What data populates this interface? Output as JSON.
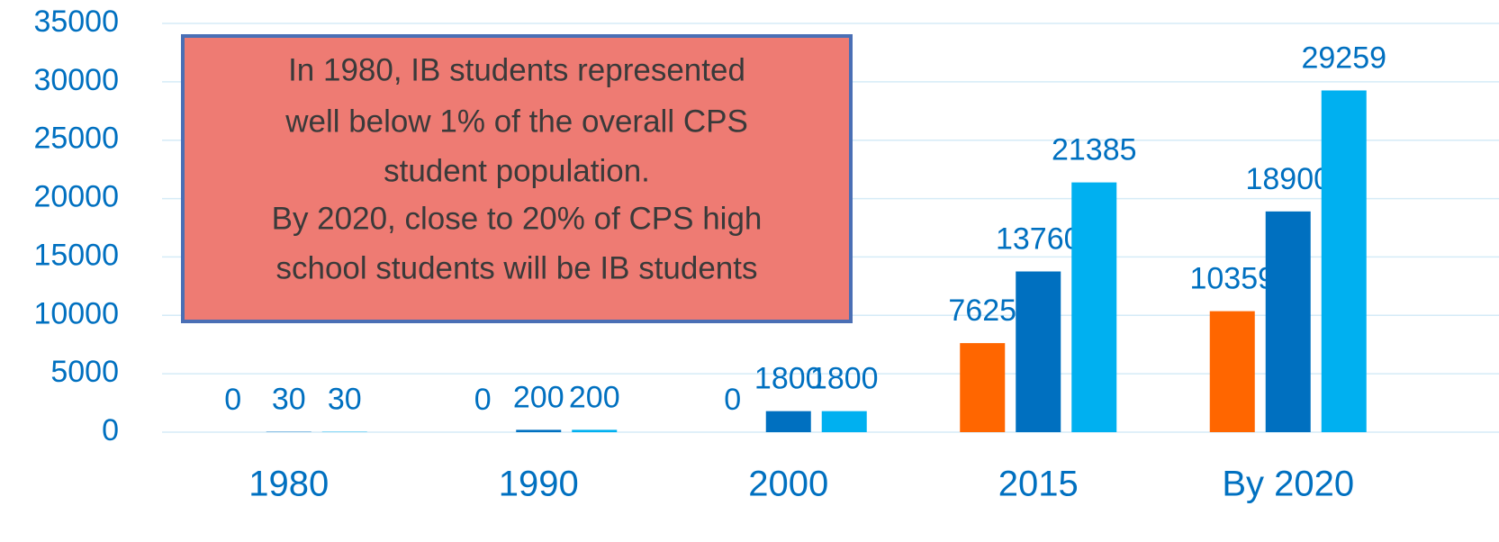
{
  "chart_data": {
    "type": "bar",
    "categories": [
      "1980",
      "1990",
      "2000",
      "2015",
      "By 2020"
    ],
    "series": [
      {
        "color": "#ff6600",
        "values": [
          0,
          0,
          0,
          7625,
          10359
        ]
      },
      {
        "color": "#0070c0",
        "values": [
          30,
          200,
          1800,
          13760,
          18900
        ]
      },
      {
        "color": "#00b0f0",
        "values": [
          30,
          200,
          1800,
          21385,
          29259
        ]
      }
    ],
    "ylim": [
      0,
      35000
    ],
    "yticks": [
      0,
      5000,
      10000,
      15000,
      20000,
      25000,
      30000,
      35000
    ],
    "grid": true,
    "annotation": [
      "In 1980, IB students represented",
      "well below 1% of the overall CPS",
      "student population.",
      "By 2020, close to 20% of CPS high",
      "school students will be IB students"
    ]
  }
}
